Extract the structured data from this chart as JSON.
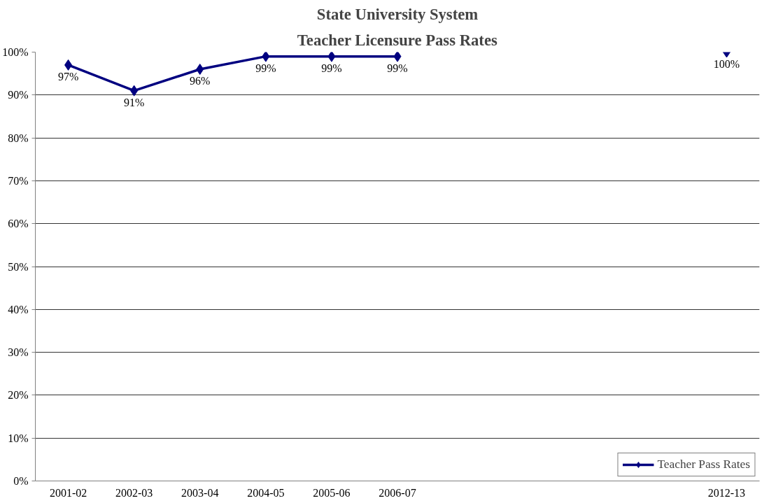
{
  "chart_data": {
    "type": "line",
    "title": "State University System",
    "subtitle": "Teacher Licensure Pass Rates",
    "categories": [
      "2001-02",
      "2002-03",
      "2003-04",
      "2004-05",
      "2005-06",
      "2006-07",
      null,
      null,
      null,
      null,
      "2012-13"
    ],
    "series": [
      {
        "name": "Teacher Pass Rates",
        "color": "#000080",
        "values": [
          97,
          91,
          96,
          99,
          99,
          99,
          null,
          null,
          null,
          null,
          100
        ],
        "value_labels": [
          "97%",
          "91%",
          "96%",
          "99%",
          "99%",
          "99%",
          null,
          null,
          null,
          null,
          "100%"
        ]
      }
    ],
    "ylim": [
      0,
      100
    ],
    "yticks": [
      {
        "value": 0,
        "label": "0%"
      },
      {
        "value": 10,
        "label": "10%"
      },
      {
        "value": 20,
        "label": "20%"
      },
      {
        "value": 30,
        "label": "30%"
      },
      {
        "value": 40,
        "label": "40%"
      },
      {
        "value": 50,
        "label": "50%"
      },
      {
        "value": 60,
        "label": "60%"
      },
      {
        "value": 70,
        "label": "70%"
      },
      {
        "value": 80,
        "label": "80%"
      },
      {
        "value": 90,
        "label": "90%"
      },
      {
        "value": 100,
        "label": "100%"
      }
    ],
    "grid": "y",
    "legend": "bottom right",
    "marker": "diamond",
    "line_style": "solid"
  }
}
